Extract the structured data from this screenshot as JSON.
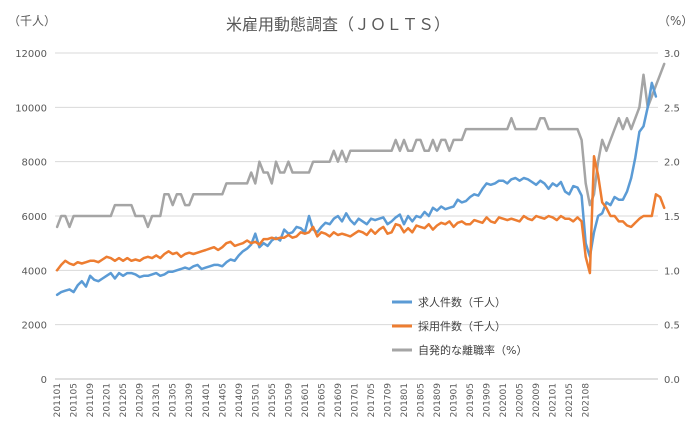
{
  "chart_data": {
    "type": "line",
    "title": "米雇用動態調査（ＪＯＬＴＳ）",
    "y_left_unit": "（千人）",
    "y_right_unit": "（%）",
    "ylim_left": [
      0,
      12000
    ],
    "ylim_right": [
      0.0,
      3.0
    ],
    "yticks_left": [
      "0",
      "2000",
      "4000",
      "6000",
      "8000",
      "10000",
      "12000"
    ],
    "yticks_right": [
      "0.0",
      "0.5",
      "1.0",
      "1.5",
      "2.0",
      "2.5",
      "3.0"
    ],
    "grid": true,
    "legend_position": "lower-center",
    "x_tick_labels": [
      "201101",
      "201105",
      "201109",
      "201201",
      "201205",
      "201209",
      "201301",
      "201305",
      "201309",
      "201401",
      "201405",
      "201409",
      "201501",
      "201505",
      "201509",
      "201601",
      "201605",
      "201609",
      "201701",
      "201705",
      "201709",
      "201801",
      "201805",
      "201809",
      "201901",
      "201905",
      "201909",
      "202001",
      "202005",
      "202009",
      "202101",
      "202105",
      "202108"
    ],
    "series": [
      {
        "name": "求人件数（千人）",
        "axis": "left",
        "color": "#5B9BD5",
        "values": [
          3100,
          3200,
          3250,
          3300,
          3200,
          3450,
          3600,
          3400,
          3800,
          3650,
          3600,
          3700,
          3800,
          3900,
          3700,
          3900,
          3800,
          3900,
          3900,
          3850,
          3750,
          3800,
          3800,
          3850,
          3900,
          3800,
          3850,
          3950,
          3950,
          4000,
          4050,
          4100,
          4050,
          4150,
          4200,
          4050,
          4100,
          4150,
          4200,
          4200,
          4150,
          4300,
          4400,
          4350,
          4550,
          4700,
          4800,
          4950,
          5350,
          4850,
          5000,
          4900,
          5100,
          5200,
          5100,
          5500,
          5350,
          5400,
          5600,
          5550,
          5400,
          6000,
          5500,
          5400,
          5600,
          5750,
          5700,
          5900,
          6000,
          5800,
          6100,
          5850,
          5700,
          5900,
          5800,
          5700,
          5900,
          5850,
          5900,
          5950,
          5700,
          5800,
          5950,
          6050,
          5700,
          6000,
          5800,
          6000,
          5950,
          6150,
          6000,
          6300,
          6200,
          6350,
          6250,
          6300,
          6350,
          6600,
          6500,
          6550,
          6700,
          6800,
          6750,
          7000,
          7200,
          7150,
          7200,
          7300,
          7300,
          7200,
          7350,
          7400,
          7300,
          7400,
          7350,
          7250,
          7150,
          7300,
          7200,
          7000,
          7200,
          7100,
          7250,
          6900,
          6800,
          7100,
          7050,
          6750,
          5000,
          4500,
          5400,
          6000,
          6100,
          6500,
          6400,
          6700,
          6600,
          6600,
          6900,
          7400,
          8150,
          9100,
          9300,
          10000,
          10900,
          10400
        ]
      },
      {
        "name": "採用件数（千人）",
        "axis": "left",
        "color": "#ED7D31",
        "values": [
          4000,
          4200,
          4350,
          4250,
          4200,
          4300,
          4250,
          4300,
          4350,
          4350,
          4300,
          4400,
          4500,
          4450,
          4350,
          4450,
          4350,
          4450,
          4350,
          4400,
          4350,
          4450,
          4500,
          4450,
          4550,
          4450,
          4600,
          4700,
          4600,
          4650,
          4500,
          4600,
          4650,
          4600,
          4650,
          4700,
          4750,
          4800,
          4850,
          4750,
          4850,
          5000,
          5050,
          4900,
          4950,
          5000,
          5100,
          5000,
          5050,
          4950,
          5150,
          5150,
          5200,
          5150,
          5200,
          5200,
          5300,
          5200,
          5250,
          5400,
          5350,
          5400,
          5600,
          5250,
          5400,
          5350,
          5250,
          5400,
          5300,
          5350,
          5300,
          5250,
          5350,
          5450,
          5400,
          5300,
          5500,
          5350,
          5500,
          5600,
          5350,
          5400,
          5700,
          5650,
          5400,
          5550,
          5400,
          5650,
          5600,
          5550,
          5700,
          5500,
          5650,
          5750,
          5700,
          5800,
          5600,
          5750,
          5800,
          5700,
          5700,
          5850,
          5800,
          5750,
          5950,
          5800,
          5750,
          5950,
          5900,
          5850,
          5900,
          5850,
          5800,
          6000,
          5900,
          5850,
          6000,
          5950,
          5900,
          6000,
          5950,
          5850,
          6000,
          5900,
          5900,
          5800,
          5950,
          5800,
          4500,
          3900,
          8200,
          7500,
          6500,
          6300,
          6000,
          6000,
          5800,
          5800,
          5650,
          5600,
          5750,
          5900,
          6000,
          6000,
          6000,
          6800,
          6700,
          6300
        ]
      },
      {
        "name": "自発的な離職率（%）",
        "axis": "right",
        "color": "#A5A5A5",
        "values": [
          1.4,
          1.5,
          1.5,
          1.4,
          1.5,
          1.5,
          1.5,
          1.5,
          1.5,
          1.5,
          1.5,
          1.5,
          1.5,
          1.5,
          1.6,
          1.6,
          1.6,
          1.6,
          1.6,
          1.5,
          1.5,
          1.5,
          1.4,
          1.5,
          1.5,
          1.5,
          1.7,
          1.7,
          1.6,
          1.7,
          1.7,
          1.6,
          1.6,
          1.7,
          1.7,
          1.7,
          1.7,
          1.7,
          1.7,
          1.7,
          1.7,
          1.8,
          1.8,
          1.8,
          1.8,
          1.8,
          1.8,
          1.9,
          1.8,
          2.0,
          1.9,
          1.9,
          1.8,
          2.0,
          1.9,
          1.9,
          2.0,
          1.9,
          1.9,
          1.9,
          1.9,
          1.9,
          2.0,
          2.0,
          2.0,
          2.0,
          2.0,
          2.1,
          2.0,
          2.1,
          2.0,
          2.1,
          2.1,
          2.1,
          2.1,
          2.1,
          2.1,
          2.1,
          2.1,
          2.1,
          2.1,
          2.1,
          2.2,
          2.1,
          2.2,
          2.1,
          2.1,
          2.2,
          2.2,
          2.1,
          2.1,
          2.2,
          2.1,
          2.2,
          2.2,
          2.1,
          2.2,
          2.2,
          2.2,
          2.3,
          2.3,
          2.3,
          2.3,
          2.3,
          2.3,
          2.3,
          2.3,
          2.3,
          2.3,
          2.3,
          2.4,
          2.3,
          2.3,
          2.3,
          2.3,
          2.3,
          2.3,
          2.4,
          2.4,
          2.3,
          2.3,
          2.3,
          2.3,
          2.3,
          2.3,
          2.3,
          2.3,
          2.2,
          1.8,
          1.6,
          1.7,
          2.0,
          2.2,
          2.1,
          2.2,
          2.3,
          2.4,
          2.3,
          2.4,
          2.3,
          2.4,
          2.5,
          2.8,
          2.5,
          2.6,
          2.7,
          2.8,
          2.9
        ]
      }
    ]
  }
}
